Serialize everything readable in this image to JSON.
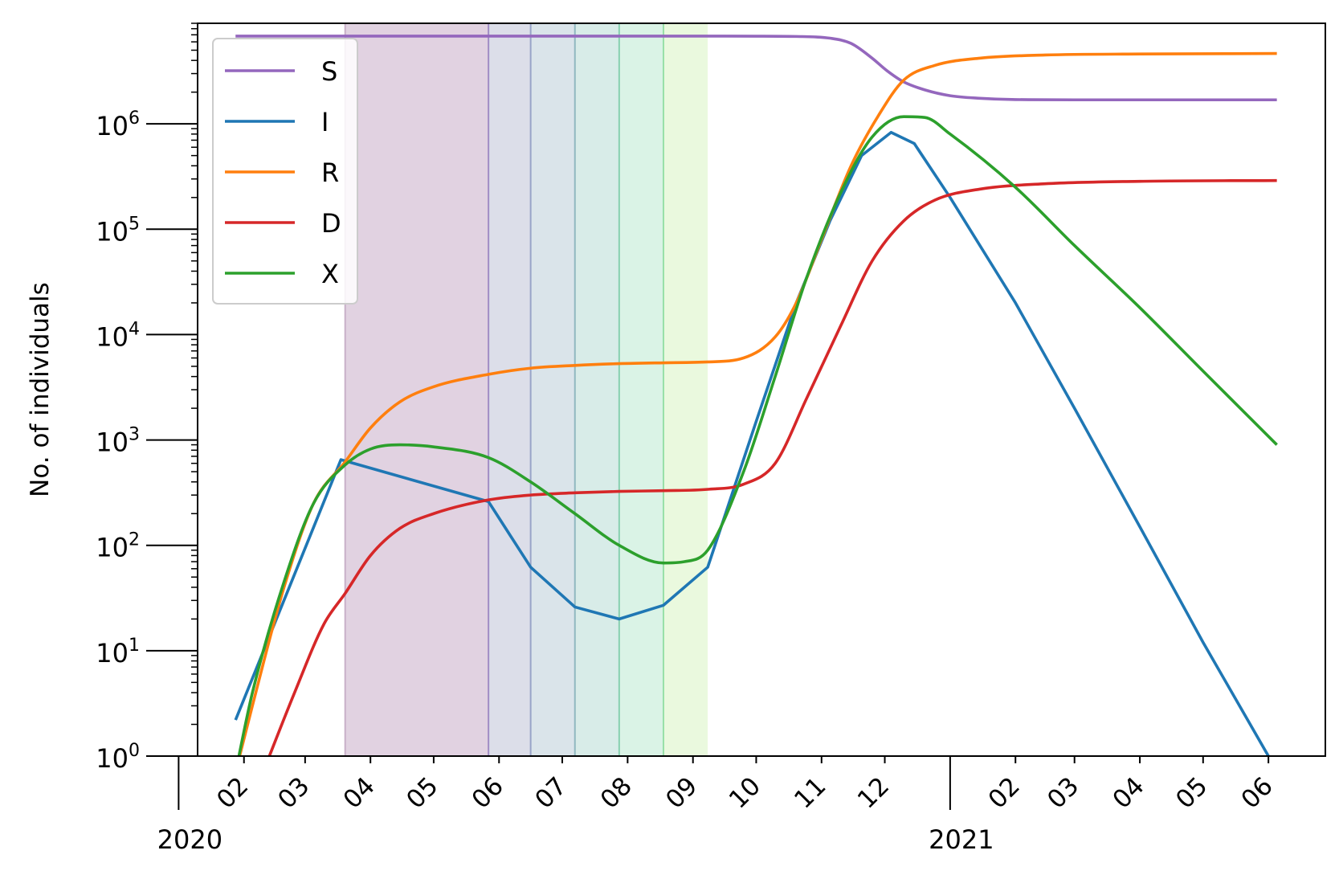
{
  "chart_data": {
    "type": "line",
    "title": "",
    "xlabel": "",
    "ylabel": "No. of individuals",
    "yscale": "log",
    "ylim": [
      1,
      9000000
    ],
    "xlim": [
      "2020-01-10",
      "2021-06-28"
    ],
    "grid": false,
    "legend": {
      "placement": "top-left",
      "entries": [
        "S",
        "I",
        "R",
        "D",
        "X"
      ]
    },
    "y_ticks": [
      {
        "value": 1,
        "base": "10",
        "exp": "0"
      },
      {
        "value": 10,
        "base": "10",
        "exp": "1"
      },
      {
        "value": 100,
        "base": "10",
        "exp": "2"
      },
      {
        "value": 1000,
        "base": "10",
        "exp": "3"
      },
      {
        "value": 10000,
        "base": "10",
        "exp": "4"
      },
      {
        "value": 100000,
        "base": "10",
        "exp": "5"
      },
      {
        "value": 1000000,
        "base": "10",
        "exp": "6"
      }
    ],
    "x_month_ticks": [
      {
        "date": "2020-02-01",
        "label": "02"
      },
      {
        "date": "2020-03-01",
        "label": "03"
      },
      {
        "date": "2020-04-01",
        "label": "04"
      },
      {
        "date": "2020-05-01",
        "label": "05"
      },
      {
        "date": "2020-06-01",
        "label": "06"
      },
      {
        "date": "2020-07-01",
        "label": "07"
      },
      {
        "date": "2020-08-01",
        "label": "08"
      },
      {
        "date": "2020-09-01",
        "label": "09"
      },
      {
        "date": "2020-10-01",
        "label": "10"
      },
      {
        "date": "2020-11-01",
        "label": "11"
      },
      {
        "date": "2020-12-01",
        "label": "12"
      },
      {
        "date": "2021-02-01",
        "label": "02"
      },
      {
        "date": "2021-03-01",
        "label": "03"
      },
      {
        "date": "2021-04-01",
        "label": "04"
      },
      {
        "date": "2021-05-01",
        "label": "05"
      },
      {
        "date": "2021-06-01",
        "label": "06"
      }
    ],
    "x_year_ticks": [
      {
        "date": "2020-01-01",
        "label": "2020"
      },
      {
        "date": "2021-01-01",
        "label": "2021"
      }
    ],
    "phases": [
      {
        "start": "2020-03-20",
        "end": "2020-05-27",
        "color": "#9a6b9a"
      },
      {
        "start": "2020-05-27",
        "end": "2020-06-16",
        "color": "#8a92b6"
      },
      {
        "start": "2020-06-16",
        "end": "2020-07-07",
        "color": "#86a6bb"
      },
      {
        "start": "2020-07-07",
        "end": "2020-07-28",
        "color": "#7dc0b4"
      },
      {
        "start": "2020-07-28",
        "end": "2020-08-18",
        "color": "#86d8ac"
      },
      {
        "start": "2020-08-18",
        "end": "2020-09-08",
        "color": "#b8ec92"
      }
    ],
    "phase_boundaries": [
      {
        "date": "2020-03-20",
        "color": "#c8b0c8"
      },
      {
        "date": "2020-05-27",
        "color": "#a08cc4"
      },
      {
        "date": "2020-06-16",
        "color": "#98a4c8"
      },
      {
        "date": "2020-07-07",
        "color": "#90b8c0"
      },
      {
        "date": "2020-07-28",
        "color": "#88d0b0"
      },
      {
        "date": "2020-08-18",
        "color": "#98e0a8"
      }
    ],
    "series": [
      {
        "name": "S",
        "color": "#9467bd",
        "points": [
          [
            "2020-01-28",
            6800000
          ],
          [
            "2020-03-20",
            6800000
          ],
          [
            "2020-06-01",
            6800000
          ],
          [
            "2020-09-01",
            6800000
          ],
          [
            "2020-10-01",
            6790000
          ],
          [
            "2020-10-20",
            6750000
          ],
          [
            "2020-11-05",
            6500000
          ],
          [
            "2020-11-15",
            5800000
          ],
          [
            "2020-11-25",
            4200000
          ],
          [
            "2020-12-02",
            3200000
          ],
          [
            "2020-12-10",
            2500000
          ],
          [
            "2020-12-20",
            2100000
          ],
          [
            "2021-01-01",
            1850000
          ],
          [
            "2021-01-15",
            1750000
          ],
          [
            "2021-02-01",
            1700000
          ],
          [
            "2021-03-01",
            1690000
          ],
          [
            "2021-06-05",
            1690000
          ]
        ]
      },
      {
        "name": "I",
        "color": "#1f77b4",
        "points": [
          [
            "2020-01-28",
            2.2
          ],
          [
            "2020-03-18",
            650
          ],
          [
            "2020-05-27",
            260
          ],
          [
            "2020-06-16",
            62
          ],
          [
            "2020-07-07",
            26
          ],
          [
            "2020-07-28",
            20
          ],
          [
            "2020-08-18",
            27
          ],
          [
            "2020-09-08",
            62
          ],
          [
            "2020-10-01",
            1500
          ],
          [
            "2020-10-20",
            20000
          ],
          [
            "2020-11-05",
            120000
          ],
          [
            "2020-11-20",
            500000
          ],
          [
            "2020-12-04",
            830000
          ],
          [
            "2020-12-15",
            650000
          ],
          [
            "2021-01-01",
            200000
          ],
          [
            "2021-02-01",
            20000
          ],
          [
            "2021-03-01",
            2000
          ],
          [
            "2021-04-01",
            150
          ],
          [
            "2021-05-01",
            12
          ],
          [
            "2021-06-01",
            1
          ]
        ]
      },
      {
        "name": "R",
        "color": "#ff7f0e",
        "points": [
          [
            "2020-01-28",
            0.7
          ],
          [
            "2020-02-05",
            3
          ],
          [
            "2020-02-20",
            40
          ],
          [
            "2020-03-05",
            250
          ],
          [
            "2020-03-20",
            620
          ],
          [
            "2020-04-01",
            1300
          ],
          [
            "2020-04-15",
            2300
          ],
          [
            "2020-05-01",
            3200
          ],
          [
            "2020-05-27",
            4200
          ],
          [
            "2020-06-16",
            4800
          ],
          [
            "2020-07-07",
            5100
          ],
          [
            "2020-07-28",
            5300
          ],
          [
            "2020-08-18",
            5400
          ],
          [
            "2020-09-08",
            5500
          ],
          [
            "2020-09-25",
            6000
          ],
          [
            "2020-10-10",
            9500
          ],
          [
            "2020-10-20",
            20000
          ],
          [
            "2020-11-01",
            80000
          ],
          [
            "2020-11-15",
            400000
          ],
          [
            "2020-11-28",
            1200000
          ],
          [
            "2020-12-10",
            2600000
          ],
          [
            "2020-12-25",
            3600000
          ],
          [
            "2021-01-15",
            4200000
          ],
          [
            "2021-02-15",
            4500000
          ],
          [
            "2021-04-01",
            4600000
          ],
          [
            "2021-06-05",
            4650000
          ]
        ]
      },
      {
        "name": "D",
        "color": "#d62728",
        "points": [
          [
            "2020-02-10",
            0.7
          ],
          [
            "2020-02-25",
            4
          ],
          [
            "2020-03-10",
            18
          ],
          [
            "2020-03-20",
            35
          ],
          [
            "2020-04-01",
            80
          ],
          [
            "2020-04-15",
            145
          ],
          [
            "2020-05-01",
            200
          ],
          [
            "2020-05-27",
            270
          ],
          [
            "2020-06-16",
            300
          ],
          [
            "2020-07-07",
            315
          ],
          [
            "2020-07-28",
            325
          ],
          [
            "2020-08-18",
            330
          ],
          [
            "2020-09-08",
            340
          ],
          [
            "2020-09-25",
            380
          ],
          [
            "2020-10-10",
            600
          ],
          [
            "2020-10-25",
            2500
          ],
          [
            "2020-11-10",
            12000
          ],
          [
            "2020-11-25",
            50000
          ],
          [
            "2020-12-10",
            120000
          ],
          [
            "2020-12-25",
            190000
          ],
          [
            "2021-01-15",
            240000
          ],
          [
            "2021-02-15",
            270000
          ],
          [
            "2021-04-01",
            285000
          ],
          [
            "2021-06-05",
            290000
          ]
        ]
      },
      {
        "name": "X",
        "color": "#2ca02c",
        "points": [
          [
            "2020-01-28",
            0.7
          ],
          [
            "2020-02-05",
            4
          ],
          [
            "2020-02-20",
            45
          ],
          [
            "2020-03-05",
            250
          ],
          [
            "2020-03-20",
            580
          ],
          [
            "2020-04-01",
            820
          ],
          [
            "2020-04-15",
            900
          ],
          [
            "2020-05-01",
            860
          ],
          [
            "2020-05-27",
            680
          ],
          [
            "2020-06-16",
            400
          ],
          [
            "2020-07-07",
            200
          ],
          [
            "2020-07-28",
            100
          ],
          [
            "2020-08-18",
            68
          ],
          [
            "2020-08-28",
            70
          ],
          [
            "2020-09-08",
            90
          ],
          [
            "2020-09-25",
            500
          ],
          [
            "2020-10-10",
            4000
          ],
          [
            "2020-10-25",
            35000
          ],
          [
            "2020-11-10",
            220000
          ],
          [
            "2020-11-25",
            750000
          ],
          [
            "2020-12-10",
            1170000
          ],
          [
            "2020-12-20",
            1150000
          ],
          [
            "2021-01-01",
            800000
          ],
          [
            "2021-02-01",
            250000
          ],
          [
            "2021-03-01",
            70000
          ],
          [
            "2021-04-01",
            18000
          ],
          [
            "2021-05-01",
            4500
          ],
          [
            "2021-06-05",
            900
          ]
        ]
      }
    ]
  }
}
